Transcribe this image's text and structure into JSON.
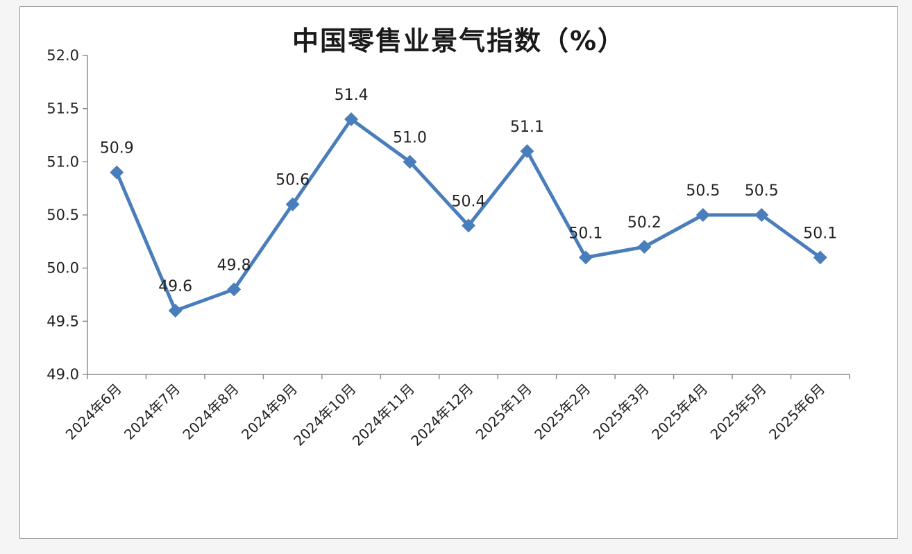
{
  "chart_data": {
    "type": "line",
    "title": "中国零售业景气指数（%）",
    "categories": [
      "2024年6月",
      "2024年7月",
      "2024年8月",
      "2024年9月",
      "2024年10月",
      "2024年11月",
      "2024年12月",
      "2025年1月",
      "2025年2月",
      "2025年3月",
      "2025年4月",
      "2025年5月",
      "2025年6月"
    ],
    "series": [
      {
        "values": [
          50.9,
          49.6,
          49.8,
          50.6,
          51.4,
          51.0,
          50.4,
          51.1,
          50.1,
          50.2,
          50.5,
          50.5,
          50.1
        ]
      }
    ],
    "value_labels": [
      "50.9",
      "49.6",
      "49.8",
      "50.6",
      "51.4",
      "51.0",
      "50.4",
      "51.1",
      "50.1",
      "50.2",
      "50.5",
      "50.5",
      "50.1"
    ],
    "yticks": [
      "49.0",
      "49.5",
      "50.0",
      "50.5",
      "51.0",
      "51.5",
      "52.0"
    ],
    "ylim": [
      49.0,
      52.0
    ],
    "xlabel": "",
    "ylabel": "",
    "grid": false,
    "legend": "none",
    "line_color": "#4a7ebb"
  }
}
